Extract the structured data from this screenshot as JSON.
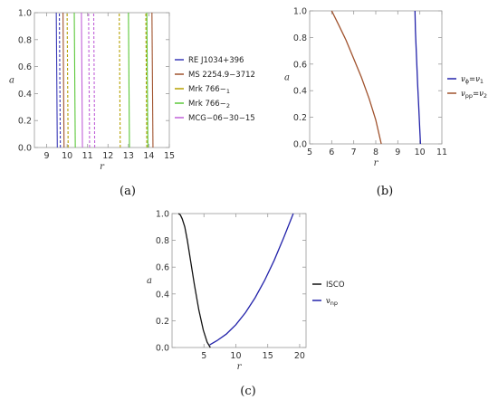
{
  "captions": {
    "a": "(a)",
    "b": "(b)",
    "c": "(c)"
  },
  "chart_data": [
    {
      "id": "a",
      "type": "line",
      "xlabel": "r",
      "ylabel": "a",
      "xlim": [
        8.4,
        15
      ],
      "ylim": [
        0,
        1
      ],
      "xticks": [
        9,
        10,
        11,
        12,
        13,
        14,
        15
      ],
      "xtick_labels": [
        "9",
        "10",
        "11",
        "12",
        "13",
        "14",
        "15"
      ],
      "yticks": [
        0,
        0.2,
        0.4,
        0.6,
        0.8,
        1.0
      ],
      "ytick_labels": [
        "0.0",
        "0.2",
        "0.4",
        "0.6",
        "0.8",
        "1.0"
      ],
      "grid": false,
      "legend_position": "right",
      "series": [
        {
          "name": "RE J1034+396",
          "color": "#3b3bb8",
          "lines": [
            {
              "x": [
                9.52,
                9.47
              ],
              "style": "solid"
            },
            {
              "x": [
                9.67,
                9.62
              ],
              "style": "dashed"
            }
          ]
        },
        {
          "name": "MS 2254.9−3712",
          "color": "#a0522d",
          "lines": [
            {
              "x": [
                9.85,
                9.8
              ],
              "style": "solid"
            },
            {
              "x": [
                14.2,
                14.15
              ],
              "style": "solid"
            }
          ]
        },
        {
          "name": "Mrk 766−",
          "sub": "1",
          "color": "#b5a000",
          "lines": [
            {
              "x": [
                10.05,
                10.0
              ],
              "style": "dashed"
            },
            {
              "x": [
                12.6,
                12.55
              ],
              "style": "dashed"
            },
            {
              "x": [
                13.9,
                13.85
              ],
              "style": "dashed"
            }
          ]
        },
        {
          "name": "Mrk 766−",
          "sub": "2",
          "color": "#5cc83a",
          "lines": [
            {
              "x": [
                10.4,
                10.35
              ],
              "style": "solid"
            },
            {
              "x": [
                13.05,
                13.0
              ],
              "style": "solid"
            },
            {
              "x": [
                13.95,
                13.9
              ],
              "style": "solid"
            }
          ]
        },
        {
          "name": "MCG−06−30−15",
          "color": "#c060d8",
          "lines": [
            {
              "x": [
                10.75,
                10.7
              ],
              "style": "solid"
            },
            {
              "x": [
                11.1,
                11.05
              ],
              "style": "dashed"
            },
            {
              "x": [
                11.35,
                11.3
              ],
              "style": "dashed"
            }
          ]
        }
      ]
    },
    {
      "id": "b",
      "type": "line",
      "xlabel": "r",
      "ylabel": "a",
      "xlim": [
        5,
        11
      ],
      "ylim": [
        0,
        1
      ],
      "xticks": [
        5,
        6,
        7,
        8,
        9,
        10,
        11
      ],
      "xtick_labels": [
        "5",
        "6",
        "7",
        "8",
        "9",
        "10",
        "11"
      ],
      "yticks": [
        0,
        0.2,
        0.4,
        0.6,
        0.8,
        1.0
      ],
      "ytick_labels": [
        "0.0",
        "0.2",
        "0.4",
        "0.6",
        "0.8",
        "1.0"
      ],
      "grid": false,
      "legend_position": "right",
      "series": [
        {
          "name": "=",
          "color": "#2222aa",
          "lhs": "ν",
          "lhs_sub": "ϕ",
          "rhs": "ν",
          "rhs_sub": "1",
          "x": [
            9.78,
            9.8,
            9.85,
            9.9,
            9.95,
            10.0,
            10.03
          ],
          "y": [
            1.0,
            0.85,
            0.65,
            0.45,
            0.28,
            0.1,
            0.0
          ]
        },
        {
          "name": "=",
          "color": "#a0522d",
          "lhs": "ν",
          "lhs_sub": "pp",
          "rhs": "ν",
          "rhs_sub": "2",
          "x": [
            6.0,
            6.3,
            6.65,
            7.0,
            7.35,
            7.7,
            8.0,
            8.25
          ],
          "y": [
            1.0,
            0.9,
            0.78,
            0.64,
            0.5,
            0.34,
            0.18,
            0.0
          ]
        }
      ]
    },
    {
      "id": "c",
      "type": "line",
      "xlabel": "r",
      "ylabel": "a",
      "xlim": [
        0,
        21
      ],
      "ylim": [
        0,
        1
      ],
      "xticks": [
        5,
        10,
        15,
        20
      ],
      "xtick_labels": [
        "5",
        "10",
        "15",
        "20"
      ],
      "yticks": [
        0,
        0.2,
        0.4,
        0.6,
        0.8,
        1.0
      ],
      "ytick_labels": [
        "0.0",
        "0.2",
        "0.4",
        "0.6",
        "0.8",
        "1.0"
      ],
      "grid": false,
      "legend_position": "right",
      "series": [
        {
          "name": "ISCO",
          "color": "#111111",
          "x": [
            1.0,
            1.3,
            1.6,
            2.0,
            2.4,
            2.9,
            3.5,
            4.2,
            4.9,
            5.5,
            6.0
          ],
          "y": [
            1.0,
            0.99,
            0.96,
            0.9,
            0.8,
            0.65,
            0.47,
            0.28,
            0.13,
            0.04,
            0.0
          ]
        },
        {
          "name": "ν",
          "sub": "np",
          "color": "#2222aa",
          "x": [
            5.9,
            7.0,
            8.5,
            10.0,
            11.5,
            13.0,
            14.5,
            16.0,
            17.5,
            19.0
          ],
          "y": [
            0.02,
            0.05,
            0.1,
            0.17,
            0.26,
            0.37,
            0.5,
            0.65,
            0.82,
            1.0
          ]
        }
      ]
    }
  ]
}
